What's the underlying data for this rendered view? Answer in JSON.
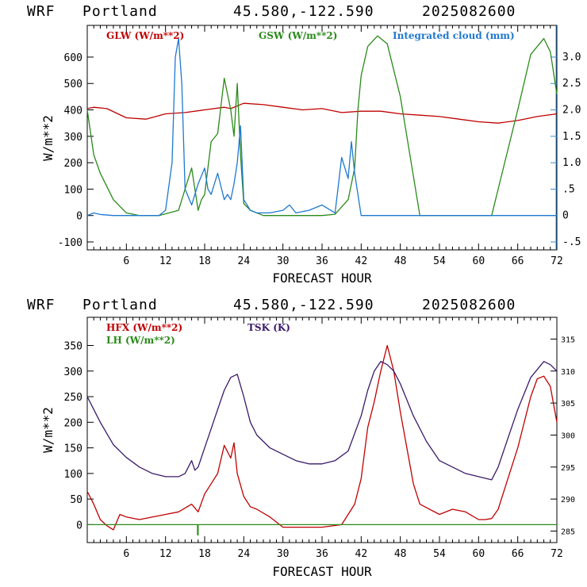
{
  "header": {
    "model": "WRF",
    "location": "Portland",
    "coords": "45.580,-122.590",
    "run": "2025082600"
  },
  "chart_data": [
    {
      "type": "line",
      "xlabel": "FORECAST HOUR",
      "ylabel": "W/m**2",
      "xlim": [
        0,
        72
      ],
      "ylim": [
        -130,
        720
      ],
      "y2lim": [
        -0.65,
        3.6
      ],
      "x_ticks": [
        6,
        12,
        18,
        24,
        30,
        36,
        42,
        48,
        54,
        60,
        66,
        72
      ],
      "y_ticks": [
        -100,
        0,
        100,
        200,
        300,
        400,
        500,
        600
      ],
      "y2_ticks": [
        "-.5",
        "0",
        ".5",
        "1.0",
        "1.5",
        "2.0",
        "2.5",
        "3.0"
      ],
      "y2_tick_values": [
        -0.5,
        0,
        0.5,
        1.0,
        1.5,
        2.0,
        2.5,
        3.0
      ],
      "series": [
        {
          "name": "GLW (W/m**2)",
          "color": "#c00000",
          "axis": "left",
          "x": [
            0,
            1,
            3,
            6,
            9,
            12,
            15,
            18,
            21,
            22,
            24,
            27,
            30,
            33,
            36,
            39,
            42,
            45,
            48,
            51,
            54,
            57,
            60,
            63,
            66,
            69,
            72
          ],
          "y": [
            405,
            410,
            405,
            370,
            365,
            385,
            390,
            400,
            410,
            405,
            425,
            420,
            410,
            400,
            405,
            390,
            395,
            395,
            385,
            380,
            375,
            365,
            355,
            350,
            360,
            375,
            385
          ]
        },
        {
          "name": "GSW (W/m**2)",
          "color": "#2a8a1a",
          "axis": "left",
          "x": [
            0,
            1,
            2,
            4,
            6,
            8,
            10,
            11,
            14,
            15,
            16,
            17,
            17.5,
            18,
            19,
            20,
            21,
            22,
            22.5,
            23,
            23.5,
            24,
            25,
            27,
            30,
            33,
            36,
            38,
            40,
            41,
            41.5,
            42,
            43,
            44.5,
            46,
            48,
            50,
            51,
            52,
            56,
            60,
            62,
            63,
            64,
            66,
            68,
            70,
            71,
            72
          ],
          "y": [
            400,
            230,
            160,
            60,
            10,
            0,
            0,
            0,
            20,
            100,
            180,
            20,
            60,
            80,
            280,
            310,
            520,
            400,
            300,
            500,
            230,
            45,
            20,
            0,
            0,
            0,
            0,
            5,
            60,
            180,
            400,
            530,
            640,
            680,
            650,
            450,
            150,
            0,
            0,
            0,
            0,
            0,
            100,
            200,
            400,
            610,
            670,
            620,
            460
          ]
        },
        {
          "name": "Integrated cloud (mm)",
          "color": "#1f78d0",
          "axis": "right",
          "x": [
            0,
            1,
            2,
            4,
            8,
            11,
            12,
            13,
            13.5,
            14,
            14.5,
            15,
            16,
            17,
            18,
            18.5,
            19,
            20,
            21,
            21.5,
            22,
            22.5,
            23,
            23.5,
            24,
            25,
            26,
            28,
            30,
            31,
            32,
            34,
            36,
            38,
            39,
            40,
            40.5,
            41,
            42,
            43,
            48,
            54,
            60,
            66,
            72
          ],
          "y": [
            0.0,
            0.05,
            0.02,
            0.0,
            0.0,
            0.0,
            0.1,
            1.0,
            3.0,
            3.35,
            2.5,
            0.5,
            0.2,
            0.6,
            0.9,
            0.5,
            0.4,
            0.8,
            0.3,
            0.4,
            0.3,
            0.6,
            1.0,
            1.7,
            0.3,
            0.1,
            0.05,
            0.05,
            0.1,
            0.2,
            0.05,
            0.1,
            0.2,
            0.05,
            1.1,
            0.7,
            1.4,
            0.8,
            0.0,
            0.0,
            0.0,
            0.0,
            0.0,
            0.0,
            0.0
          ]
        }
      ]
    },
    {
      "type": "line",
      "xlabel": "FORECAST HOUR",
      "ylabel": "W/m**2",
      "xlim": [
        0,
        72
      ],
      "ylim": [
        -35,
        405
      ],
      "y2lim": [
        283.2,
        318.4
      ],
      "x_ticks": [
        6,
        12,
        18,
        24,
        30,
        36,
        42,
        48,
        54,
        60,
        66,
        72
      ],
      "y_ticks": [
        0,
        50,
        100,
        150,
        200,
        250,
        300,
        350
      ],
      "y2_ticks": [
        285,
        290,
        295,
        300,
        305,
        310,
        315
      ],
      "series": [
        {
          "name": "HFX (W/m**2)",
          "color": "#c00000",
          "axis": "left",
          "x": [
            0,
            1,
            2,
            3,
            4,
            5,
            6,
            8,
            10,
            12,
            14,
            16,
            17,
            18,
            19,
            20,
            21,
            22,
            22.5,
            23,
            24,
            25,
            26,
            28,
            30,
            33,
            36,
            39,
            40,
            41,
            42,
            43,
            44,
            45,
            46,
            47,
            48,
            49,
            50,
            51,
            54,
            56,
            58,
            60,
            61,
            62,
            63,
            64,
            66,
            68,
            69,
            70,
            71,
            72
          ],
          "y": [
            65,
            40,
            10,
            -2,
            -10,
            20,
            15,
            10,
            15,
            20,
            25,
            40,
            25,
            60,
            80,
            100,
            155,
            130,
            160,
            100,
            55,
            35,
            30,
            15,
            -5,
            -5,
            -5,
            0,
            20,
            40,
            90,
            190,
            240,
            300,
            350,
            300,
            220,
            150,
            80,
            40,
            20,
            30,
            25,
            10,
            10,
            12,
            30,
            70,
            150,
            250,
            285,
            290,
            270,
            200
          ]
        },
        {
          "name": "LH  (W/m**2)",
          "color": "#2a8a1a",
          "axis": "left",
          "x": [
            0,
            16.9,
            16.9,
            17.0,
            17.0,
            72
          ],
          "y": [
            0,
            0,
            -20,
            -20,
            0,
            0
          ]
        },
        {
          "name": "TSK (K)",
          "color": "#3a1a6a",
          "axis": "right",
          "x": [
            0,
            2,
            4,
            6,
            8,
            10,
            12,
            14,
            15,
            16,
            16.5,
            17,
            18,
            19,
            20,
            21,
            22,
            23,
            24,
            25,
            26,
            28,
            30,
            32,
            34,
            36,
            38,
            40,
            42,
            43,
            44,
            45,
            46,
            47,
            48,
            50,
            52,
            54,
            56,
            58,
            60,
            62,
            63,
            64,
            66,
            68,
            70,
            71,
            72
          ],
          "y": [
            306,
            302,
            298.5,
            296.5,
            295,
            294,
            293.5,
            293.5,
            294,
            296,
            294.5,
            295,
            298,
            301,
            304,
            307,
            309,
            309.5,
            306,
            302,
            300,
            298,
            297,
            296,
            295.5,
            295.5,
            296,
            297.5,
            303,
            307,
            310,
            311.5,
            311,
            310,
            308,
            303,
            299,
            296,
            295,
            294,
            293.5,
            293,
            295,
            298,
            304,
            309,
            311.5,
            311,
            310
          ]
        }
      ]
    }
  ]
}
